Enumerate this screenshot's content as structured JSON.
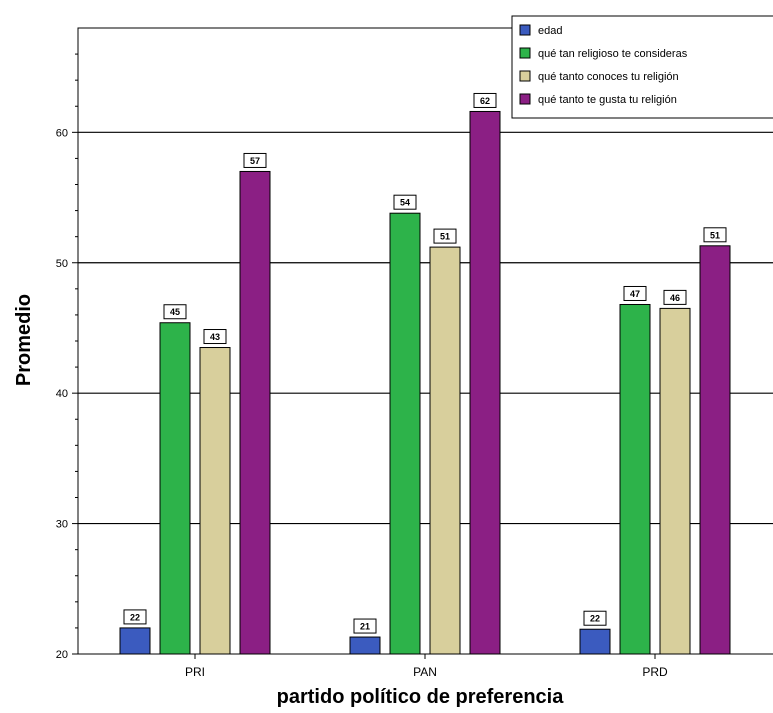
{
  "chart_data": {
    "type": "bar",
    "title": "",
    "xlabel": "partido político de preferencia",
    "ylabel": "Promedio",
    "categories": [
      "PRI",
      "PAN",
      "PRD"
    ],
    "ylim": [
      20,
      68
    ],
    "yticks": [
      20,
      30,
      40,
      50,
      60
    ],
    "grid": true,
    "legend_position": "top-right",
    "series": [
      {
        "name": "edad",
        "color": "#3b5bbf",
        "values": [
          22.0,
          21.3,
          21.9
        ],
        "labels": [
          "22",
          "21",
          "22"
        ]
      },
      {
        "name": "qué tan religioso te consideras",
        "color": "#2db34a",
        "values": [
          45.4,
          53.8,
          46.8
        ],
        "labels": [
          "45",
          "54",
          "47"
        ]
      },
      {
        "name": "qué tanto conoces tu religión",
        "color": "#d8cf9c",
        "values": [
          43.5,
          51.2,
          46.5
        ],
        "labels": [
          "43",
          "51",
          "46"
        ]
      },
      {
        "name": "qué tanto te gusta tu religión",
        "color": "#8b1f84",
        "values": [
          57.0,
          61.6,
          51.3
        ],
        "labels": [
          "57",
          "62",
          "51"
        ]
      }
    ]
  }
}
